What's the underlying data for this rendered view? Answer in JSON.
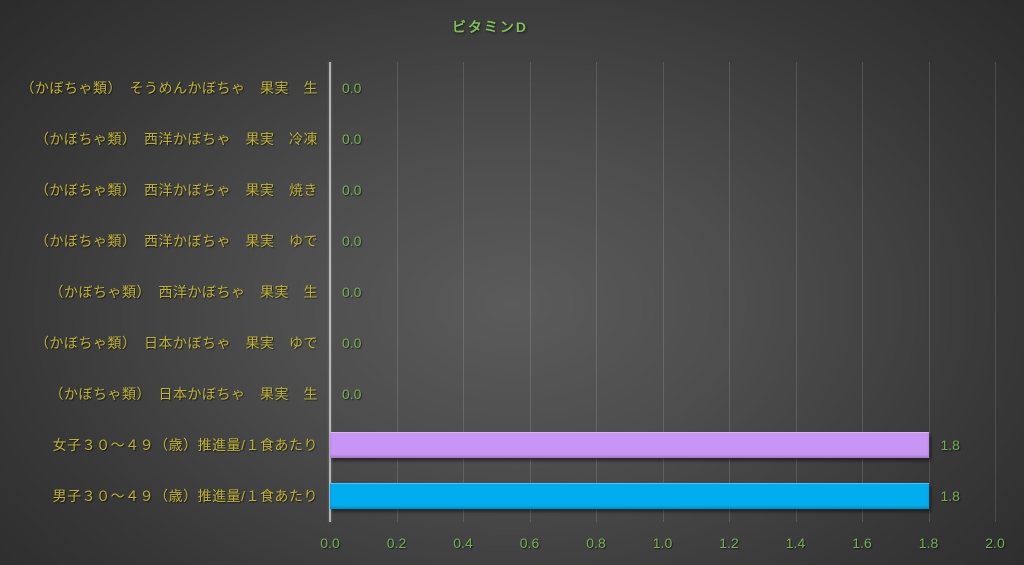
{
  "chart": {
    "title": "ビタミンD",
    "colors": {
      "title": "#7CC255",
      "category_label": "#BDB234",
      "value_label": "#74AF51",
      "tick_label": "#74AF51",
      "bar_female": "#C895F4",
      "bar_male": "#00AEEF"
    }
  },
  "chart_data": {
    "type": "bar",
    "orientation": "horizontal",
    "title": "ビタミンD",
    "categories": [
      "（かぼちゃ類）　そうめんかぼちゃ　果実　生",
      "（かぼちゃ類）　西洋かぼちゃ　果実　冷凍",
      "（かぼちゃ類）　西洋かぼちゃ　果実　焼き",
      "（かぼちゃ類）　西洋かぼちゃ　果実　ゆで",
      "（かぼちゃ類）　西洋かぼちゃ　果実　生",
      "（かぼちゃ類）　日本かぼちゃ　果実　ゆで",
      "（かぼちゃ類）　日本かぼちゃ　果実　生",
      "女子３０～４９（歳）推進量/１食あたり",
      "男子３０～４９（歳）推進量/１食あたり"
    ],
    "values": [
      0.0,
      0.0,
      0.0,
      0.0,
      0.0,
      0.0,
      0.0,
      1.8,
      1.8
    ],
    "value_labels": [
      "0.0",
      "0.0",
      "0.0",
      "0.0",
      "0.0",
      "0.0",
      "0.0",
      "1.8",
      "1.8"
    ],
    "bar_colors": [
      null,
      null,
      null,
      null,
      null,
      null,
      null,
      "#C895F4",
      "#00AEEF"
    ],
    "xlabel": "",
    "ylabel": "",
    "xlim": [
      0.0,
      2.0
    ],
    "x_ticks": [
      "0.0",
      "0.2",
      "0.4",
      "0.6",
      "0.8",
      "1.0",
      "1.2",
      "1.4",
      "1.6",
      "1.8",
      "2.0"
    ],
    "grid": "vertical",
    "legend": false
  }
}
